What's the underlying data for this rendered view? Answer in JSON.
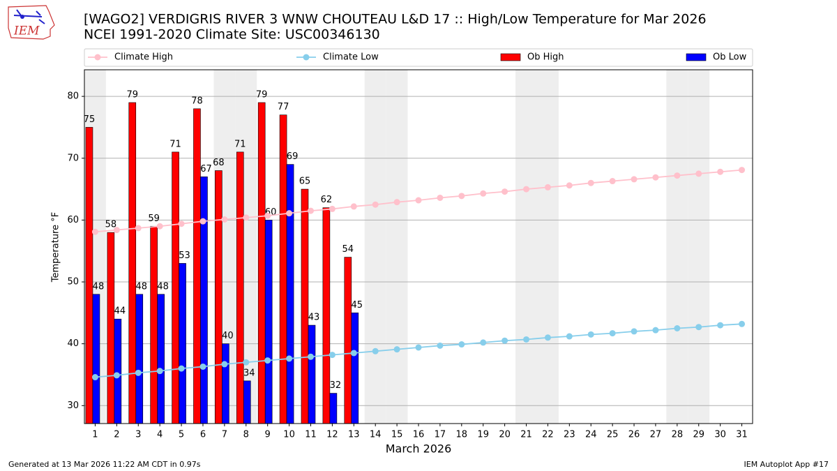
{
  "chart_data": {
    "type": "bar",
    "title": "[WAGO2] VERDIGRIS RIVER 3 WNW CHOUTEAU L&D 17 :: High/Low Temperature for Mar 2026",
    "subtitle": "NCEI 1991-2020 Climate Site: USC00346130",
    "x_label": "March 2026",
    "y_label": "Temperature °F",
    "footer_left": "Generated at 13 Mar 2026 11:22 AM CDT in 0.97s",
    "footer_right": "IEM Autoplot App #17",
    "logo_text": "IEM",
    "categories": [
      "1",
      "2",
      "3",
      "4",
      "5",
      "6",
      "7",
      "8",
      "9",
      "10",
      "11",
      "12",
      "13",
      "14",
      "15",
      "16",
      "17",
      "18",
      "19",
      "20",
      "21",
      "22",
      "23",
      "24",
      "25",
      "26",
      "27",
      "28",
      "29",
      "30",
      "31"
    ],
    "highlight_categories": [
      "1",
      "7",
      "8",
      "14",
      "15",
      "21",
      "22",
      "28",
      "29"
    ],
    "highlight_color": "#eeeeee",
    "series": [
      {
        "name": "Climate High",
        "type": "line",
        "color": "#ffc0cb",
        "values": [
          58.1,
          58.4,
          58.7,
          59.0,
          59.4,
          59.8,
          60.1,
          60.4,
          60.7,
          61.1,
          61.5,
          61.8,
          62.2,
          62.5,
          62.9,
          63.2,
          63.6,
          63.9,
          64.3,
          64.6,
          65.0,
          65.3,
          65.6,
          66.0,
          66.3,
          66.6,
          66.9,
          67.2,
          67.5,
          67.8,
          68.1
        ]
      },
      {
        "name": "Climate Low",
        "type": "line",
        "color": "#87ceeb",
        "values": [
          34.6,
          34.9,
          35.3,
          35.6,
          36.0,
          36.3,
          36.7,
          37.0,
          37.3,
          37.6,
          37.9,
          38.2,
          38.5,
          38.8,
          39.1,
          39.4,
          39.7,
          39.9,
          40.2,
          40.5,
          40.7,
          41.0,
          41.2,
          41.5,
          41.7,
          42.0,
          42.2,
          42.5,
          42.7,
          43.0,
          43.2
        ]
      },
      {
        "name": "Ob High",
        "type": "bar",
        "color": "#ff0000",
        "values": [
          75,
          58,
          79,
          59,
          71,
          78,
          68,
          71,
          79,
          77,
          65,
          62,
          54,
          null,
          null,
          null,
          null,
          null,
          null,
          null,
          null,
          null,
          null,
          null,
          null,
          null,
          null,
          null,
          null,
          null,
          null
        ]
      },
      {
        "name": "Ob Low",
        "type": "bar",
        "color": "#0000ff",
        "values": [
          48,
          44,
          48,
          48,
          53,
          67,
          40,
          34,
          60,
          69,
          43,
          32,
          45,
          null,
          null,
          null,
          null,
          null,
          null,
          null,
          null,
          null,
          null,
          null,
          null,
          null,
          null,
          null,
          null,
          null,
          null
        ]
      }
    ],
    "ylim": [
      27.1,
      84.3
    ],
    "yticks": [
      30,
      40,
      50,
      60,
      70,
      80
    ],
    "grid": true
  }
}
